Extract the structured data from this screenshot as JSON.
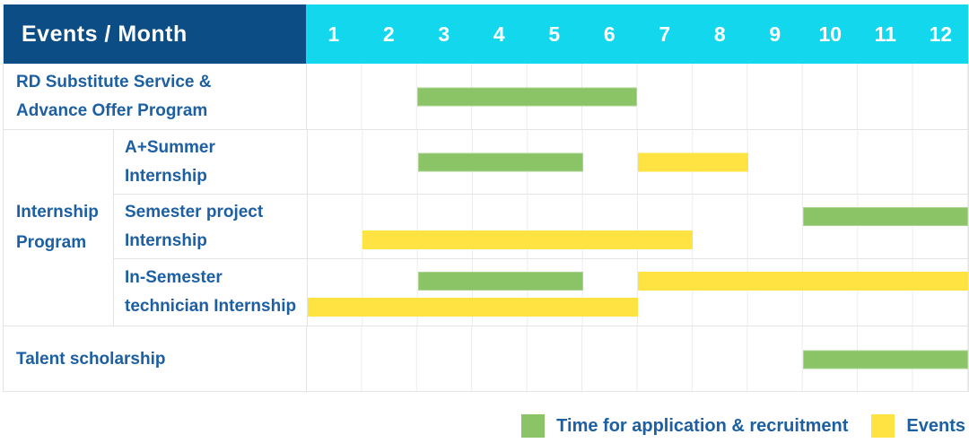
{
  "colors": {
    "header_bg": "#0d4d85",
    "months_bg": "#12d7ed",
    "label_text": "#1c5fa3",
    "application_bar": "#8bc466",
    "event_bar": "#ffe342",
    "grid_line": "#e4e4e4"
  },
  "chart_data": {
    "type": "table",
    "title": "Events / Month",
    "months": [
      "1",
      "2",
      "3",
      "4",
      "5",
      "6",
      "7",
      "8",
      "9",
      "10",
      "11",
      "12"
    ],
    "x_range": [
      1,
      12
    ],
    "grid": true,
    "rows": [
      {
        "label": "RD Substitute Service & Advance Offer Program",
        "label_lines": [
          "RD Substitute Service &",
          "Advance Offer Program"
        ],
        "group": null,
        "bars": [
          {
            "kind": "application",
            "start_month": 3,
            "end_month": 6,
            "track": "center"
          }
        ]
      },
      {
        "label": "A+Summer Internship",
        "label_lines": [
          "A+Summer",
          "Internship"
        ],
        "group": "Internship Program",
        "bars": [
          {
            "kind": "application",
            "start_month": 3,
            "end_month": 5,
            "track": "center"
          },
          {
            "kind": "event",
            "start_month": 7,
            "end_month": 8,
            "track": "center"
          }
        ]
      },
      {
        "label": "Semester project Internship",
        "label_lines": [
          "Semester project",
          "Internship"
        ],
        "group": "Internship Program",
        "bars": [
          {
            "kind": "application",
            "start_month": 10,
            "end_month": 12,
            "track": "upper"
          },
          {
            "kind": "event",
            "start_month": 2,
            "end_month": 7,
            "track": "lower"
          }
        ]
      },
      {
        "label": "In-Semester technician Internship",
        "label_lines": [
          "In-Semester",
          "technician Internship"
        ],
        "group": "Internship Program",
        "bars": [
          {
            "kind": "application",
            "start_month": 3,
            "end_month": 5,
            "track": "upper"
          },
          {
            "kind": "event",
            "start_month": 7,
            "end_month": 12,
            "track": "upper"
          },
          {
            "kind": "event",
            "start_month": 1,
            "end_month": 6,
            "track": "lower"
          }
        ]
      },
      {
        "label": "Talent scholarship",
        "label_lines": [
          "Talent scholarship"
        ],
        "group": null,
        "bars": [
          {
            "kind": "application",
            "start_month": 10,
            "end_month": 12,
            "track": "center"
          }
        ]
      }
    ],
    "group_label_lines": [
      "Internship",
      "Program"
    ],
    "legend": [
      {
        "kind": "application",
        "label": "Time for application & recruitment",
        "color": "#8bc466"
      },
      {
        "kind": "event",
        "label": "Events",
        "color": "#ffe342"
      }
    ],
    "legend_position": "bottom-right"
  }
}
